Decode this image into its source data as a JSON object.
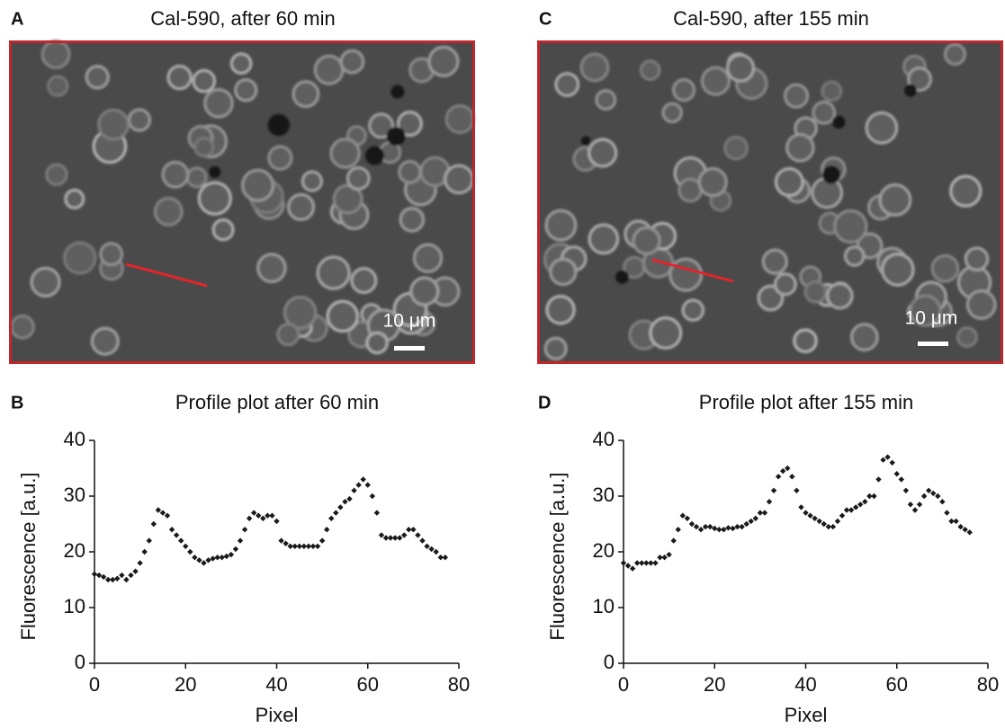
{
  "chart_data": [
    {
      "type": "image",
      "panel_label": "A",
      "title": "Cal-590, after 60 min",
      "scale_label": "10 μm",
      "border_color": "#c0272d",
      "marker_color": "#e0262c"
    },
    {
      "type": "image",
      "panel_label": "C",
      "title": "Cal-590, after 155 min",
      "scale_label": "10 μm",
      "border_color": "#c0272d",
      "marker_color": "#e0262c"
    },
    {
      "type": "scatter",
      "panel_label": "B",
      "title": "Profile plot after 60 min",
      "x_label": "Pixel",
      "y_label": "Fluorescence [a.u.]",
      "color": "#1a1a1a",
      "x": [
        0,
        1,
        2,
        3,
        4,
        5,
        6,
        7,
        8,
        9,
        10,
        11,
        12,
        13,
        14,
        15,
        16,
        17,
        18,
        19,
        20,
        21,
        22,
        23,
        24,
        25,
        26,
        27,
        28,
        29,
        30,
        31,
        32,
        33,
        34,
        35,
        36,
        37,
        38,
        39,
        40,
        41,
        42,
        43,
        44,
        45,
        46,
        47,
        48,
        49,
        50,
        51,
        52,
        53,
        54,
        55,
        56,
        57,
        58,
        59,
        60,
        61,
        62,
        63,
        64,
        65,
        66,
        67,
        68,
        69,
        70,
        71,
        72,
        73,
        74,
        75,
        76,
        77
      ],
      "values": [
        16,
        15.8,
        15.5,
        15,
        15,
        15.2,
        15.8,
        15,
        15.8,
        16.5,
        18,
        20,
        22,
        25,
        27.5,
        27,
        26.5,
        24,
        23,
        22,
        21,
        20,
        19,
        18.5,
        18,
        18.5,
        18.8,
        19,
        19,
        19.2,
        19.5,
        20.5,
        22,
        24,
        26,
        27,
        26.5,
        26,
        26.5,
        26.5,
        25.5,
        22,
        21.5,
        21,
        21,
        21,
        21,
        21,
        21,
        21,
        22,
        24,
        26,
        27,
        28,
        29,
        29.5,
        31,
        32,
        33,
        32,
        30,
        27,
        23,
        22.5,
        22.5,
        22.5,
        22.5,
        23,
        24,
        24,
        23,
        22,
        21,
        20.5,
        20,
        19,
        19
      ],
      "xlim": [
        0,
        80
      ],
      "ylim": [
        0,
        40
      ],
      "xticks": [
        0,
        20,
        40,
        60,
        80
      ],
      "yticks": [
        0,
        10,
        20,
        30,
        40
      ]
    },
    {
      "type": "scatter",
      "panel_label": "D",
      "title": "Profile plot after 155 min",
      "x_label": "Pixel",
      "y_label": "Fluorescence [a.u.]",
      "color": "#1a1a1a",
      "x": [
        0,
        1,
        2,
        3,
        4,
        5,
        6,
        7,
        8,
        9,
        10,
        11,
        12,
        13,
        14,
        15,
        16,
        17,
        18,
        19,
        20,
        21,
        22,
        23,
        24,
        25,
        26,
        27,
        28,
        29,
        30,
        31,
        32,
        33,
        34,
        35,
        36,
        37,
        38,
        39,
        40,
        41,
        42,
        43,
        44,
        45,
        46,
        47,
        48,
        49,
        50,
        51,
        52,
        53,
        54,
        55,
        56,
        57,
        58,
        59,
        60,
        61,
        62,
        63,
        64,
        65,
        66,
        67,
        68,
        69,
        70,
        71,
        72,
        73,
        74,
        75,
        76
      ],
      "values": [
        18,
        17.5,
        17,
        18,
        18,
        18,
        18,
        18,
        19,
        19,
        19.5,
        22,
        24,
        26.5,
        26,
        25,
        24.5,
        24,
        24.5,
        24.5,
        24.2,
        24,
        24,
        24.3,
        24.2,
        24.5,
        24.5,
        25,
        25.5,
        26,
        27,
        27,
        29,
        31,
        33.5,
        34.5,
        35,
        33.5,
        31,
        28,
        27,
        26.5,
        26,
        25.5,
        25,
        24.5,
        24.5,
        25.5,
        26.5,
        27.5,
        27.5,
        28,
        28.5,
        29,
        30,
        30,
        33,
        36.5,
        37,
        36,
        34,
        33,
        31,
        28.5,
        27.5,
        28.5,
        30,
        31,
        30.5,
        30,
        29,
        27,
        25.5,
        25.5,
        24.5,
        24,
        23.5
      ],
      "xlim": [
        0,
        80
      ],
      "ylim": [
        0,
        40
      ],
      "xticks": [
        0,
        20,
        40,
        60,
        80
      ],
      "yticks": [
        0,
        10,
        20,
        30,
        40
      ]
    }
  ]
}
